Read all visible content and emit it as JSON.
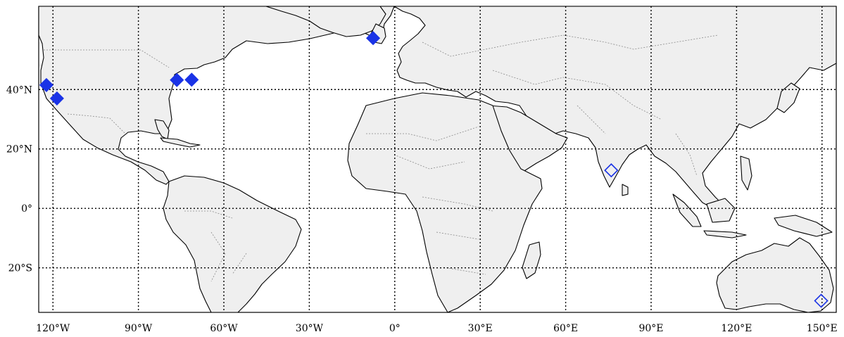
{
  "map": {
    "projection": "equirectangular",
    "extent": {
      "lon": [
        -125,
        155
      ],
      "lat": [
        -35,
        68
      ]
    },
    "parallels": [
      40,
      20,
      0,
      -20
    ],
    "meridians": [
      -120,
      -90,
      -60,
      -30,
      0,
      30,
      60,
      90,
      120,
      150
    ],
    "lat_labels": [
      "40°N",
      "20°N",
      "0°",
      "20°S"
    ],
    "lon_labels": [
      "120°W",
      "90°W",
      "60°W",
      "30°W",
      "0°",
      "30°E",
      "60°E",
      "90°E",
      "120°E",
      "150°E"
    ],
    "colors": {
      "land": "#efefef",
      "coastline": "#000000",
      "marker": "#1a33e6",
      "grid": "#000000"
    },
    "markers": [
      {
        "lon": -122.3,
        "lat": 41.5,
        "style": "filled"
      },
      {
        "lon": -118.6,
        "lat": 37.0,
        "style": "filled"
      },
      {
        "lon": -76.5,
        "lat": 43.2,
        "style": "filled"
      },
      {
        "lon": -71.3,
        "lat": 43.3,
        "style": "filled"
      },
      {
        "lon": -7.6,
        "lat": 57.3,
        "style": "filled"
      },
      {
        "lon": 76.0,
        "lat": 12.8,
        "style": "open"
      },
      {
        "lon": 149.7,
        "lat": -31.1,
        "style": "open"
      }
    ]
  }
}
